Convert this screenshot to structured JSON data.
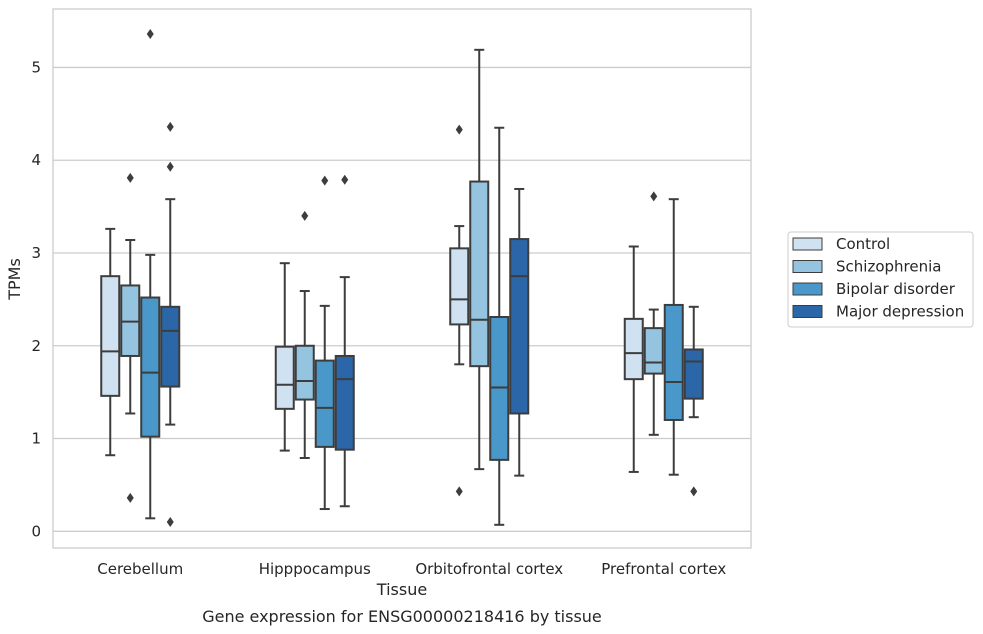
{
  "chart_data": {
    "type": "box",
    "xlabel": "Tissue",
    "ylabel": "TPMs",
    "caption": "Gene expression for ENSG00000218416 by tissue",
    "ylim": [
      -0.18,
      5.63
    ],
    "yticks": [
      0,
      1,
      2,
      3,
      4,
      5
    ],
    "grid": true,
    "legend_position": "right",
    "categories": [
      "Cerebellum",
      "Hipppocampus",
      "Orbitofrontal cortex",
      "Prefrontal cortex"
    ],
    "series": [
      {
        "name": "Control",
        "color": "#d0e1f2",
        "boxes": [
          {
            "whisker_low": 0.82,
            "q1": 1.46,
            "median": 1.94,
            "q3": 2.75,
            "whisker_high": 3.26,
            "outliers": []
          },
          {
            "whisker_low": 0.87,
            "q1": 1.32,
            "median": 1.58,
            "q3": 1.99,
            "whisker_high": 2.89,
            "outliers": []
          },
          {
            "whisker_low": 1.8,
            "q1": 2.23,
            "median": 2.5,
            "q3": 3.05,
            "whisker_high": 3.29,
            "outliers": [
              4.33,
              0.43
            ]
          },
          {
            "whisker_low": 0.64,
            "q1": 1.64,
            "median": 1.92,
            "q3": 2.29,
            "whisker_high": 3.07,
            "outliers": []
          }
        ]
      },
      {
        "name": "Schizophrenia",
        "color": "#94c4df",
        "boxes": [
          {
            "whisker_low": 1.27,
            "q1": 1.89,
            "median": 2.26,
            "q3": 2.65,
            "whisker_high": 3.14,
            "outliers": [
              3.81,
              0.36
            ]
          },
          {
            "whisker_low": 0.79,
            "q1": 1.42,
            "median": 1.62,
            "q3": 2.0,
            "whisker_high": 2.59,
            "outliers": [
              3.4
            ]
          },
          {
            "whisker_low": 0.67,
            "q1": 1.78,
            "median": 2.28,
            "q3": 3.77,
            "whisker_high": 5.19,
            "outliers": []
          },
          {
            "whisker_low": 1.04,
            "q1": 1.7,
            "median": 1.82,
            "q3": 2.19,
            "whisker_high": 2.39,
            "outliers": [
              3.61
            ]
          }
        ]
      },
      {
        "name": "Bipolar disorder",
        "color": "#4a98c9",
        "boxes": [
          {
            "whisker_low": 0.14,
            "q1": 1.02,
            "median": 1.71,
            "q3": 2.52,
            "whisker_high": 2.98,
            "outliers": [
              5.36
            ]
          },
          {
            "whisker_low": 0.24,
            "q1": 0.91,
            "median": 1.33,
            "q3": 1.84,
            "whisker_high": 2.43,
            "outliers": [
              3.78
            ]
          },
          {
            "whisker_low": 0.07,
            "q1": 0.77,
            "median": 1.55,
            "q3": 2.31,
            "whisker_high": 4.35,
            "outliers": []
          },
          {
            "whisker_low": 0.61,
            "q1": 1.2,
            "median": 1.61,
            "q3": 2.44,
            "whisker_high": 3.58,
            "outliers": []
          }
        ]
      },
      {
        "name": "Major depression",
        "color": "#2a66a8",
        "boxes": [
          {
            "whisker_low": 1.15,
            "q1": 1.56,
            "median": 2.16,
            "q3": 2.42,
            "whisker_high": 3.58,
            "outliers": [
              4.36,
              3.93,
              0.1
            ]
          },
          {
            "whisker_low": 0.27,
            "q1": 0.88,
            "median": 1.64,
            "q3": 1.89,
            "whisker_high": 2.74,
            "outliers": [
              3.79
            ]
          },
          {
            "whisker_low": 0.6,
            "q1": 1.27,
            "median": 2.75,
            "q3": 3.15,
            "whisker_high": 3.69,
            "outliers": []
          },
          {
            "whisker_low": 1.23,
            "q1": 1.43,
            "median": 1.83,
            "q3": 1.96,
            "whisker_high": 2.42,
            "outliers": [
              0.43
            ]
          }
        ]
      }
    ]
  }
}
